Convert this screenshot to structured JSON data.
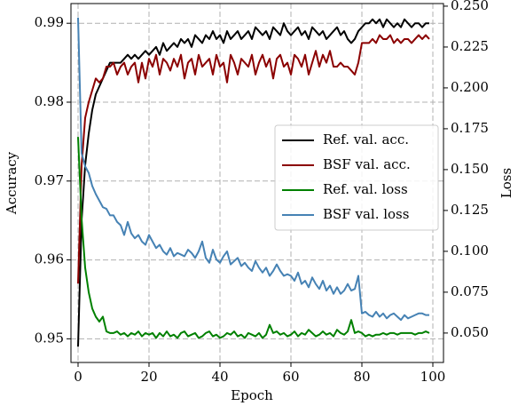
{
  "chart_data": {
    "type": "line",
    "xlabel": "Epoch",
    "ylabel": "Accuracy",
    "y2label": "Loss",
    "x": [
      0,
      1,
      2,
      3,
      4,
      5,
      6,
      7,
      8,
      9,
      10,
      11,
      12,
      13,
      14,
      15,
      16,
      17,
      18,
      19,
      20,
      21,
      22,
      23,
      24,
      25,
      26,
      27,
      28,
      29,
      30,
      31,
      32,
      33,
      34,
      35,
      36,
      37,
      38,
      39,
      40,
      41,
      42,
      43,
      44,
      45,
      46,
      47,
      48,
      49,
      50,
      51,
      52,
      53,
      54,
      55,
      56,
      57,
      58,
      59,
      60,
      61,
      62,
      63,
      64,
      65,
      66,
      67,
      68,
      69,
      70,
      71,
      72,
      73,
      74,
      75,
      76,
      77,
      78,
      79,
      80,
      81,
      82,
      83,
      84,
      85,
      86,
      87,
      88,
      89,
      90,
      91,
      92,
      93,
      94,
      95,
      96,
      97,
      98,
      99
    ],
    "xlim": [
      -2,
      103
    ],
    "xticks": [
      0,
      20,
      40,
      60,
      80,
      100
    ],
    "ylim": [
      0.947,
      0.9925
    ],
    "yticks": [
      0.95,
      0.96,
      0.97,
      0.98,
      0.99
    ],
    "y2lim": [
      0.032,
      0.2516
    ],
    "y2ticks": [
      {
        "value": 0.05,
        "label": "0.050"
      },
      0.075,
      {
        "value": 0.1,
        "label": "0.100"
      },
      0.125,
      {
        "value": 0.15,
        "label": "0.150"
      },
      0.175,
      {
        "value": 0.2,
        "label": "0.200"
      },
      0.225,
      {
        "value": 0.25,
        "label": "0.250"
      }
    ],
    "grid": true,
    "legend": "center right",
    "series": [
      {
        "name": "Ref. val. acc.",
        "color": "#000000",
        "values": [
          0.949,
          0.965,
          0.972,
          0.976,
          0.979,
          0.981,
          0.982,
          0.983,
          0.984,
          0.985,
          0.985,
          0.985,
          0.985,
          0.9855,
          0.986,
          0.9855,
          0.986,
          0.9855,
          0.986,
          0.9865,
          0.986,
          0.9865,
          0.987,
          0.986,
          0.9875,
          0.9865,
          0.987,
          0.9875,
          0.987,
          0.988,
          0.9875,
          0.988,
          0.987,
          0.9885,
          0.988,
          0.9875,
          0.9885,
          0.988,
          0.989,
          0.988,
          0.9885,
          0.9875,
          0.989,
          0.988,
          0.9885,
          0.989,
          0.988,
          0.9885,
          0.989,
          0.988,
          0.9895,
          0.989,
          0.9885,
          0.989,
          0.988,
          0.9895,
          0.989,
          0.9885,
          0.99,
          0.989,
          0.9885,
          0.989,
          0.9895,
          0.9885,
          0.989,
          0.988,
          0.9895,
          0.989,
          0.9885,
          0.989,
          0.988,
          0.9885,
          0.989,
          0.9895,
          0.9885,
          0.989,
          0.988,
          0.9875,
          0.988,
          0.989,
          0.9895,
          0.99,
          0.99,
          0.9905,
          0.99,
          0.9905,
          0.9895,
          0.9905,
          0.99,
          0.9895,
          0.99,
          0.9895,
          0.9905,
          0.99,
          0.9895,
          0.99,
          0.99,
          0.9895,
          0.99,
          0.99
        ]
      },
      {
        "name": "BSF val. acc.",
        "color": "#8b0000",
        "values": [
          0.957,
          0.972,
          0.978,
          0.98,
          0.9815,
          0.983,
          0.9825,
          0.983,
          0.9845,
          0.9845,
          0.985,
          0.9835,
          0.9845,
          0.985,
          0.9835,
          0.9845,
          0.985,
          0.9825,
          0.985,
          0.983,
          0.9855,
          0.9845,
          0.986,
          0.9835,
          0.9855,
          0.985,
          0.984,
          0.9855,
          0.9845,
          0.986,
          0.983,
          0.985,
          0.9855,
          0.9835,
          0.986,
          0.9845,
          0.985,
          0.9855,
          0.9835,
          0.986,
          0.9845,
          0.985,
          0.9825,
          0.986,
          0.985,
          0.9835,
          0.9855,
          0.985,
          0.9845,
          0.986,
          0.9835,
          0.985,
          0.986,
          0.9845,
          0.9855,
          0.983,
          0.9855,
          0.986,
          0.9845,
          0.985,
          0.9835,
          0.986,
          0.9855,
          0.9845,
          0.986,
          0.9835,
          0.985,
          0.9865,
          0.9845,
          0.986,
          0.985,
          0.9865,
          0.9845,
          0.9845,
          0.985,
          0.9845,
          0.9845,
          0.984,
          0.9835,
          0.985,
          0.9875,
          0.9875,
          0.9875,
          0.988,
          0.9875,
          0.9885,
          0.988,
          0.988,
          0.9885,
          0.9875,
          0.988,
          0.9875,
          0.988,
          0.988,
          0.9875,
          0.988,
          0.9885,
          0.988,
          0.9885,
          0.988
        ]
      },
      {
        "name": "Ref. val. loss",
        "color": "#008000",
        "axis": "y2",
        "values": [
          0.17,
          0.12,
          0.09,
          0.075,
          0.065,
          0.06,
          0.057,
          0.06,
          0.051,
          0.05,
          0.05,
          0.051,
          0.049,
          0.05,
          0.048,
          0.05,
          0.049,
          0.051,
          0.048,
          0.05,
          0.049,
          0.05,
          0.047,
          0.05,
          0.048,
          0.051,
          0.048,
          0.049,
          0.047,
          0.05,
          0.051,
          0.048,
          0.049,
          0.05,
          0.047,
          0.048,
          0.05,
          0.051,
          0.048,
          0.049,
          0.047,
          0.048,
          0.05,
          0.049,
          0.051,
          0.048,
          0.049,
          0.047,
          0.05,
          0.049,
          0.048,
          0.05,
          0.047,
          0.049,
          0.055,
          0.05,
          0.051,
          0.049,
          0.05,
          0.048,
          0.049,
          0.051,
          0.048,
          0.05,
          0.049,
          0.052,
          0.05,
          0.048,
          0.049,
          0.051,
          0.049,
          0.05,
          0.048,
          0.052,
          0.05,
          0.049,
          0.051,
          0.058,
          0.05,
          0.051,
          0.05,
          0.048,
          0.049,
          0.048,
          0.049,
          0.049,
          0.05,
          0.049,
          0.05,
          0.05,
          0.049,
          0.05,
          0.05,
          0.05,
          0.05,
          0.049,
          0.05,
          0.05,
          0.051,
          0.05
        ]
      },
      {
        "name": "BSF val. loss",
        "color": "#4682b4",
        "axis": "y2",
        "values": [
          0.243,
          0.16,
          0.152,
          0.148,
          0.14,
          0.135,
          0.131,
          0.127,
          0.126,
          0.122,
          0.122,
          0.118,
          0.116,
          0.11,
          0.118,
          0.111,
          0.108,
          0.11,
          0.106,
          0.104,
          0.11,
          0.106,
          0.102,
          0.104,
          0.1,
          0.098,
          0.102,
          0.097,
          0.099,
          0.098,
          0.097,
          0.101,
          0.099,
          0.096,
          0.1,
          0.106,
          0.096,
          0.093,
          0.101,
          0.095,
          0.093,
          0.097,
          0.1,
          0.092,
          0.094,
          0.096,
          0.091,
          0.093,
          0.09,
          0.088,
          0.094,
          0.09,
          0.087,
          0.09,
          0.085,
          0.088,
          0.092,
          0.088,
          0.085,
          0.086,
          0.085,
          0.082,
          0.087,
          0.08,
          0.082,
          0.078,
          0.084,
          0.08,
          0.077,
          0.082,
          0.076,
          0.079,
          0.074,
          0.078,
          0.074,
          0.076,
          0.08,
          0.076,
          0.077,
          0.085,
          0.062,
          0.063,
          0.061,
          0.06,
          0.063,
          0.06,
          0.062,
          0.059,
          0.061,
          0.062,
          0.06,
          0.058,
          0.061,
          0.059,
          0.06,
          0.061,
          0.062,
          0.062,
          0.061,
          0.061
        ]
      }
    ]
  }
}
